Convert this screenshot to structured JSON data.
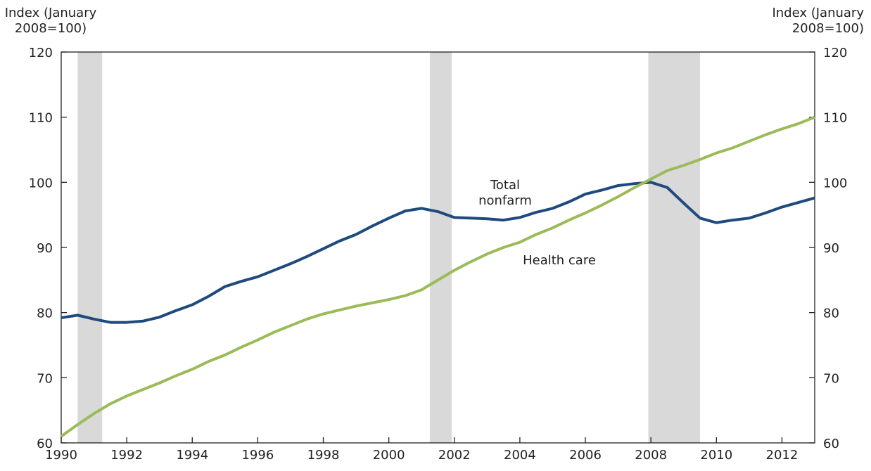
{
  "chart_data": {
    "type": "line",
    "y_label": [
      "Index (January",
      "2008=100)"
    ],
    "y2_label": [
      "Index (January",
      "2008=100)"
    ],
    "xlim": [
      1990,
      2013
    ],
    "xticks": [
      1990,
      1992,
      1994,
      1996,
      1998,
      2000,
      2002,
      2004,
      2006,
      2008,
      2010,
      2012
    ],
    "ylim": [
      60,
      120
    ],
    "yticks": [
      60,
      70,
      80,
      90,
      100,
      110,
      120
    ],
    "y2lim": [
      60,
      120
    ],
    "y2ticks": [
      60,
      70,
      80,
      90,
      100,
      110,
      120
    ],
    "shaded_periods": [
      [
        1990.5,
        1991.25
      ],
      [
        2001.25,
        2001.92
      ],
      [
        2007.92,
        2009.5
      ]
    ],
    "shade_color": "#d9d9d9",
    "x": [
      1990,
      1990.5,
      1991,
      1991.5,
      1992,
      1992.5,
      1993,
      1993.5,
      1994,
      1994.5,
      1995,
      1995.5,
      1996,
      1996.5,
      1997,
      1997.5,
      1998,
      1998.5,
      1999,
      1999.5,
      2000,
      2000.5,
      2001,
      2001.5,
      2002,
      2002.5,
      2003,
      2003.5,
      2004,
      2004.5,
      2005,
      2005.5,
      2006,
      2006.5,
      2007,
      2007.5,
      2008,
      2008.5,
      2009,
      2009.5,
      2010,
      2010.5,
      2011,
      2011.5,
      2012,
      2012.5,
      2013
    ],
    "series": [
      {
        "name": "Total nonfarm",
        "color": "#1f4a7d",
        "values": [
          79.2,
          79.6,
          79.0,
          78.5,
          78.5,
          78.7,
          79.3,
          80.3,
          81.2,
          82.5,
          84.0,
          84.8,
          85.5,
          86.5,
          87.5,
          88.6,
          89.8,
          91.0,
          92.0,
          93.3,
          94.5,
          95.6,
          96.0,
          95.5,
          94.6,
          94.5,
          94.4,
          94.2,
          94.6,
          95.4,
          96.0,
          97.0,
          98.2,
          98.8,
          99.5,
          99.8,
          100,
          99.2,
          96.8,
          94.5,
          93.8,
          94.2,
          94.5,
          95.3,
          96.2,
          96.9,
          97.6
        ]
      },
      {
        "name": "Health care",
        "color": "#9bbb59",
        "values": [
          61,
          62.8,
          64.5,
          66,
          67.2,
          68.2,
          69.2,
          70.3,
          71.3,
          72.5,
          73.5,
          74.7,
          75.8,
          77,
          78,
          79,
          79.8,
          80.4,
          81,
          81.5,
          82,
          82.6,
          83.5,
          85,
          86.5,
          87.8,
          89.0,
          90,
          90.8,
          92,
          93,
          94.2,
          95.3,
          96.5,
          97.8,
          99.2,
          100.5,
          101.8,
          102.6,
          103.5,
          104.5,
          105.3,
          106.3,
          107.3,
          108.2,
          109,
          110
        ]
      }
    ]
  }
}
